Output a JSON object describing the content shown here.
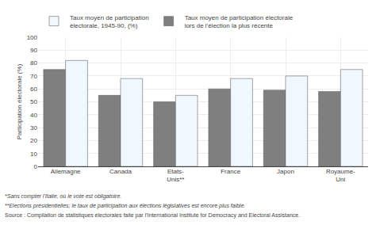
{
  "chart_data": {
    "type": "bar",
    "categories": [
      "Allemagne",
      "Canada",
      "Etats-\nUnis**",
      "France",
      "Japon",
      "Royaume-\nUni"
    ],
    "series": [
      {
        "name": "Taux moyen de participation électorale\nlors de l'élection la plus récente",
        "color": "#7f7f7f",
        "values": [
          75,
          55,
          50,
          60,
          59,
          58
        ]
      },
      {
        "name": "Taux moyen de participation\nélectorale, 1945-90, (%)",
        "color": "#f0f8ff",
        "values": [
          82,
          68,
          55,
          68,
          70,
          75
        ]
      }
    ],
    "ylabel": "Participation électorale (%)",
    "ylim": [
      0,
      100
    ],
    "yticks": [
      0,
      10,
      20,
      30,
      40,
      50,
      60,
      70,
      80,
      90,
      100
    ],
    "grid": true,
    "annotations": [
      "*Sans compter l'Italie, où le vote est obligatoire.",
      "**Elections présidentielles; le taux de participation aux élections législatives est encore plus faible.",
      "Source : Compilation de statistiques électorales faite par l'International Institute for Democracy and Electoral Assistance."
    ]
  }
}
